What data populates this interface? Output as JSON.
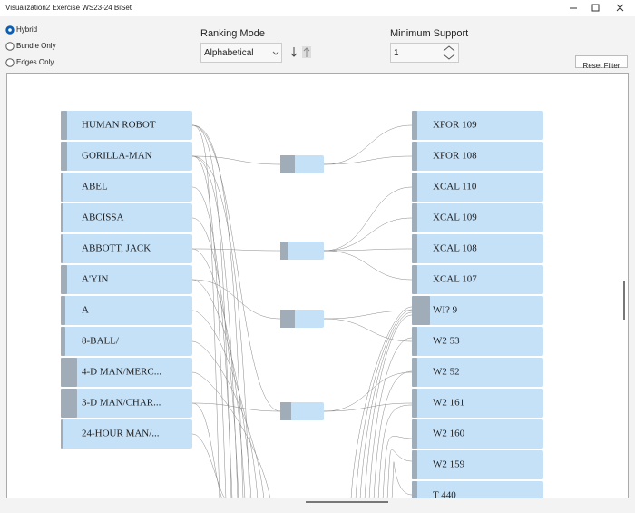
{
  "window": {
    "title": "Visualization2 Exercise WS23-24 BiSet"
  },
  "controls": {
    "modes": [
      "Hybrid",
      "Bundle Only",
      "Edges Only"
    ],
    "ranking_label": "Ranking Mode",
    "ranking_value": "Alphabetical",
    "support_label": "Minimum Support",
    "support_value": 1,
    "reset": "Reset Filter"
  },
  "left_nodes": [
    "HUMAN ROBOT",
    "GORILLA-MAN",
    "ABEL",
    "ABCISSA",
    "ABBOTT, JACK",
    "A'YIN",
    "A",
    "8-BALL/",
    "4-D MAN/MERC...",
    "3-D MAN/CHAR...",
    "24-HOUR MAN/..."
  ],
  "right_nodes": [
    "XFOR 109",
    "XFOR 108",
    "XCAL 110",
    "XCAL 109",
    "XCAL 108",
    "XCAL 107",
    "WI? 9",
    "W2 53",
    "W2 52",
    "W2 161",
    "W2 160",
    "W2 159",
    "T 440"
  ]
}
